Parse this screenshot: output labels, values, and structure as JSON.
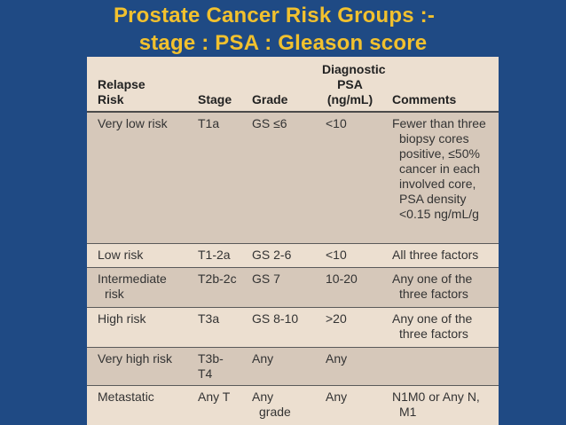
{
  "title": {
    "line1": "Prostate Cancer Risk Groups :-",
    "line2": "stage : PSA : Gleason score"
  },
  "table": {
    "headers": [
      "Relapse\nRisk",
      "Stage",
      "Grade",
      "Diagnostic\nPSA\n(ng/mL)",
      "Comments"
    ],
    "rows": [
      [
        "Very low risk",
        "T1a",
        "GS ≤6",
        "<10",
        "Fewer than three\nbiopsy cores\npositive, ≤50%\ncancer in each\ninvolved core,\nPSA density\n<0.15 ng/mL/g"
      ],
      [
        "Low risk",
        "T1-2a",
        "GS 2-6",
        "<10",
        "All three factors"
      ],
      [
        "Intermediate\nrisk",
        "T2b-2c",
        "GS 7",
        "10-20",
        "Any one of the\nthree factors"
      ],
      [
        "High risk",
        "T3a",
        "GS 8-10",
        ">20",
        "Any one of the\nthree factors"
      ],
      [
        "Very high risk",
        "T3b-T4",
        "Any",
        "Any",
        ""
      ],
      [
        "Metastatic",
        "Any T",
        "Any\ngrade",
        "Any",
        "N1M0 or Any N,\nM1"
      ]
    ]
  }
}
